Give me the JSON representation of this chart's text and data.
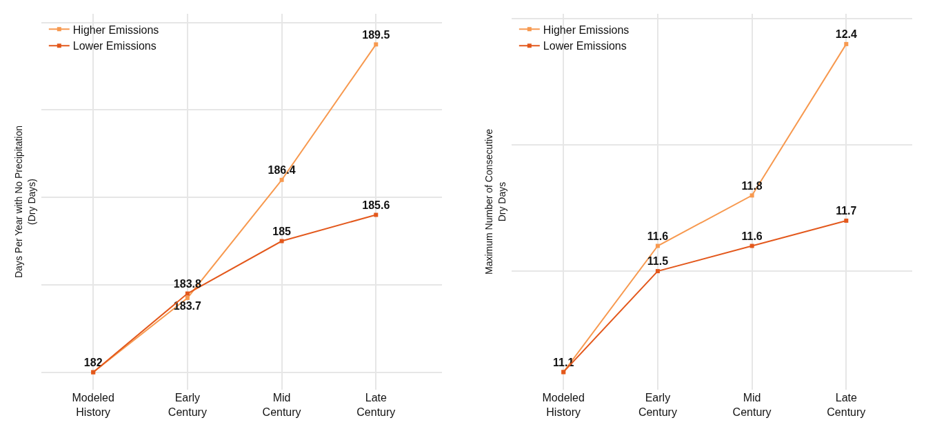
{
  "chart_data": [
    {
      "type": "line",
      "ylabel": "Days Per Year with No Precipitation\n(Dry Days)",
      "categories": [
        "Modeled\nHistory",
        "Early\nCentury",
        "Mid\nCentury",
        "Late\nCentury"
      ],
      "series": [
        {
          "name": "Higher Emissions",
          "color": "#f7994f",
          "values": [
            182,
            183.7,
            186.4,
            189.5
          ],
          "value_labels": [
            "182",
            "183.7",
            "186.4",
            "189.5"
          ]
        },
        {
          "name": "Lower Emissions",
          "color": "#e3581c",
          "values": [
            182,
            183.8,
            185,
            185.6
          ],
          "value_labels": [
            null,
            "183.8",
            "185",
            "185.6"
          ]
        }
      ],
      "ylim": [
        181.6,
        190.2
      ],
      "yticks": [
        {
          "value": 182,
          "label": null
        },
        {
          "value": 184,
          "label": null
        },
        {
          "value": 186,
          "label": null
        },
        {
          "value": 188,
          "label": null
        },
        {
          "value": 190,
          "label": null
        }
      ],
      "tick_labels": "x",
      "grid": true,
      "legend": "top left",
      "marker": "square",
      "line_style": "solid"
    },
    {
      "type": "line",
      "ylabel": "Maximum Number of Consecutive\nDry Days",
      "categories": [
        "Modeled\nHistory",
        "Early\nCentury",
        "Mid\nCentury",
        "Late\nCentury"
      ],
      "series": [
        {
          "name": "Higher Emissions",
          "color": "#f7994f",
          "values": [
            11.1,
            11.6,
            11.8,
            12.4
          ],
          "value_labels": [
            "11.1",
            "11.6",
            "11.8",
            "12.4"
          ]
        },
        {
          "name": "Lower Emissions",
          "color": "#e3581c",
          "values": [
            11.1,
            11.5,
            11.6,
            11.7
          ],
          "value_labels": [
            null,
            "11.5",
            "11.6",
            "11.7"
          ]
        }
      ],
      "ylim": [
        11.03,
        12.52
      ],
      "yticks": [
        {
          "value": 11.5,
          "label": null
        },
        {
          "value": 12,
          "label": null
        },
        {
          "value": 12.5,
          "label": null
        }
      ],
      "tick_labels": "x",
      "grid": true,
      "legend": "top left",
      "marker": "square",
      "line_style": "solid"
    }
  ]
}
